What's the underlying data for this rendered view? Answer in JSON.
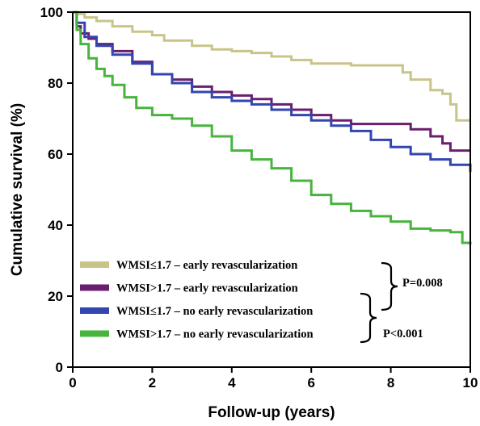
{
  "chart_data": {
    "type": "line",
    "step": true,
    "xlabel": "Follow-up (years)",
    "ylabel": "Cumulative survival (%)",
    "xlim": [
      0,
      10
    ],
    "ylim": [
      0,
      100
    ],
    "xticks": [
      0,
      2,
      4,
      6,
      8,
      10
    ],
    "yticks": [
      0,
      20,
      40,
      60,
      80,
      100
    ],
    "grid": false,
    "legend_position": "bottom-left",
    "series": [
      {
        "name": "WMSI≤1.7 – early revascularization",
        "color": "#c9c48a",
        "x": [
          0,
          0.1,
          0.3,
          0.6,
          1.0,
          1.5,
          2.0,
          2.3,
          3.0,
          3.5,
          4.0,
          4.5,
          5.0,
          5.5,
          6.0,
          6.5,
          7.0,
          7.5,
          8.0,
          8.2,
          8.3,
          8.5,
          9.0,
          9.3,
          9.5,
          9.6,
          9.65,
          10.0
        ],
        "y": [
          100,
          99.5,
          98.5,
          97.5,
          96,
          94.5,
          93.5,
          92,
          90.5,
          89.5,
          89,
          88.5,
          87.5,
          86.5,
          85.5,
          85.5,
          85,
          85,
          85,
          85,
          83,
          81,
          78,
          77,
          74,
          74,
          69.5,
          69.5
        ]
      },
      {
        "name": "WMSI>1.7 – early revascularization",
        "color": "#6a1e6e",
        "x": [
          0,
          0.1,
          0.2,
          0.4,
          0.6,
          1.0,
          1.5,
          2.0,
          2.5,
          3.0,
          3.5,
          4.0,
          4.5,
          5.0,
          5.5,
          6.0,
          6.5,
          7.0,
          7.5,
          8.0,
          8.5,
          9.0,
          9.3,
          9.5,
          10.0
        ],
        "y": [
          100,
          96,
          94,
          92.5,
          91,
          89,
          86,
          82.5,
          81,
          79,
          77.5,
          76.5,
          75.5,
          74,
          72.5,
          71,
          69.5,
          68.5,
          68.5,
          68.5,
          67,
          65,
          63,
          61,
          61
        ]
      },
      {
        "name": "WMSI≤1.7 – no early revascularization",
        "color": "#3346b0",
        "x": [
          0,
          0.1,
          0.3,
          0.6,
          1.0,
          1.5,
          2.0,
          2.5,
          3.0,
          3.5,
          4.0,
          4.5,
          5.0,
          5.5,
          6.0,
          6.5,
          7.0,
          7.5,
          8.0,
          8.5,
          9.0,
          9.5,
          10.0
        ],
        "y": [
          100,
          97,
          93,
          90.5,
          88,
          85.5,
          82.5,
          80,
          77.5,
          76,
          75,
          74,
          72.5,
          71,
          69.5,
          68,
          66.5,
          64,
          62,
          60,
          58.5,
          57,
          55
        ]
      },
      {
        "name": "WMSI>1.7 – no early revascularization",
        "color": "#48b43e",
        "x": [
          0,
          0.1,
          0.2,
          0.4,
          0.6,
          0.8,
          1.0,
          1.3,
          1.6,
          2.0,
          2.5,
          3.0,
          3.5,
          4.0,
          4.5,
          5.0,
          5.5,
          6.0,
          6.5,
          7.0,
          7.5,
          8.0,
          8.5,
          9.0,
          9.5,
          9.8,
          10.0
        ],
        "y": [
          100,
          95,
          91,
          87,
          84,
          82,
          79.5,
          76,
          73,
          71,
          70,
          68,
          65,
          61,
          58.5,
          56,
          52.5,
          48.5,
          46,
          44,
          42.5,
          41,
          39,
          38.5,
          38,
          35,
          34.5
        ]
      }
    ],
    "annotations": [
      {
        "text": "P=0.008",
        "compares": [
          "WMSI≤1.7 – early revascularization",
          "WMSI>1.7 – early revascularization"
        ]
      },
      {
        "text": "P<0.001",
        "compares": [
          "WMSI≤1.7 – no early revascularization",
          "WMSI>1.7 – no early revascularization"
        ]
      }
    ]
  }
}
